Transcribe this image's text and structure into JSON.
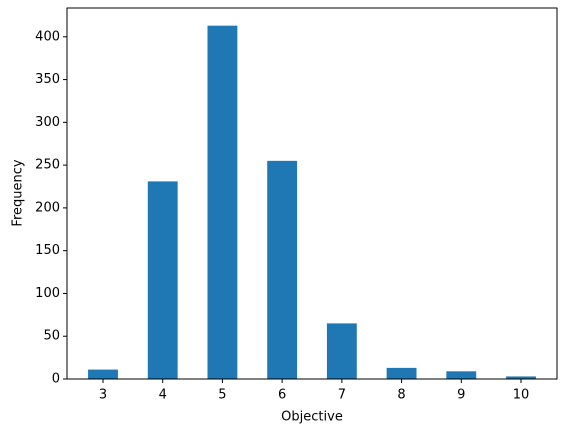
{
  "chart_data": {
    "type": "bar",
    "x_label": "Objective",
    "y_label": "Frequency",
    "categories": [
      "3",
      "4",
      "5",
      "6",
      "7",
      "8",
      "9",
      "10"
    ],
    "values": [
      11,
      231,
      413,
      255,
      65,
      13,
      9,
      3
    ],
    "color": "#1f77b4",
    "ylim": [
      0,
      433.65
    ],
    "yticks": [
      0,
      50,
      100,
      150,
      200,
      250,
      300,
      350,
      400
    ],
    "grid": false
  }
}
